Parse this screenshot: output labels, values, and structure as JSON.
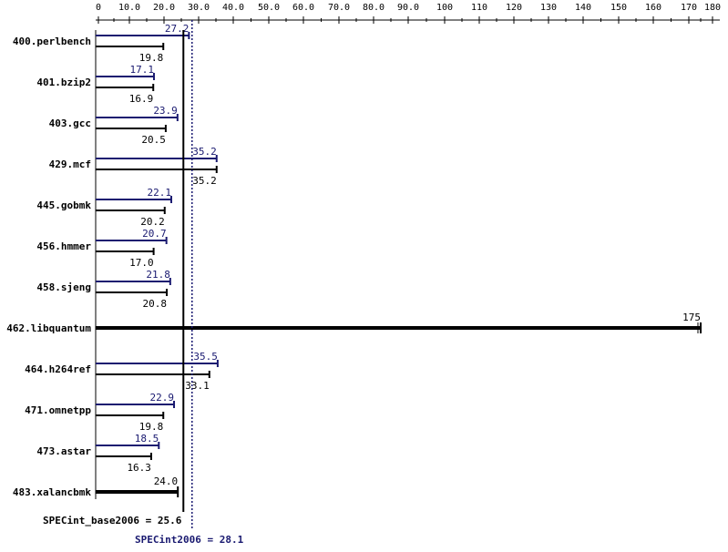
{
  "chart_data": {
    "type": "bar",
    "orientation": "horizontal",
    "x_scale": "piecewise-linear",
    "x_ticks": [
      "0",
      "10.0",
      "20.0",
      "30.0",
      "40.0",
      "50.0",
      "60.0",
      "70.0",
      "80.0",
      "90.0",
      "100",
      "110",
      "120",
      "130",
      "140",
      "150",
      "160",
      "170",
      "180"
    ],
    "x_tick_values": [
      0,
      10,
      20,
      30,
      40,
      50,
      60,
      70,
      80,
      90,
      100,
      110,
      120,
      130,
      140,
      150,
      160,
      170,
      180
    ],
    "xlim": [
      0,
      180
    ],
    "grid": false,
    "categories": [
      "400.perlbench",
      "401.bzip2",
      "403.gcc",
      "429.mcf",
      "445.gobmk",
      "456.hmmer",
      "458.sjeng",
      "462.libquantum",
      "464.h264ref",
      "471.omnetpp",
      "473.astar",
      "483.xalancbmk"
    ],
    "series": [
      {
        "key": "peak",
        "values": [
          27.2,
          17.1,
          23.9,
          35.2,
          22.1,
          20.7,
          21.8,
          175,
          35.5,
          22.9,
          18.5,
          24.0
        ],
        "labels": [
          "27.2",
          "17.1",
          "23.9",
          "35.2",
          "22.1",
          "20.7",
          "21.8",
          "175",
          "35.5",
          "22.9",
          "18.5",
          "24.0"
        ],
        "color": "#191970"
      },
      {
        "key": "base",
        "values": [
          19.8,
          16.9,
          20.5,
          35.2,
          20.2,
          17.0,
          20.8,
          175,
          33.1,
          19.8,
          16.3,
          24.0
        ],
        "labels": [
          "19.8",
          "16.9",
          "20.5",
          "35.2",
          "20.2",
          "17.0",
          "20.8",
          "",
          "33.1",
          "19.8",
          "16.3",
          ""
        ],
        "color": "#000000"
      }
    ],
    "merged_bars": [
      false,
      false,
      false,
      false,
      false,
      false,
      false,
      true,
      false,
      false,
      false,
      true
    ],
    "summary": {
      "base_text": "SPECint_base2006 = 25.6",
      "base_value": 25.6,
      "peak_text": "SPECint2006 = 28.1",
      "peak_value": 28.1
    },
    "colors": {
      "axis": "#000000",
      "peak": "#191970",
      "base": "#000000",
      "background": "#ffffff"
    }
  }
}
